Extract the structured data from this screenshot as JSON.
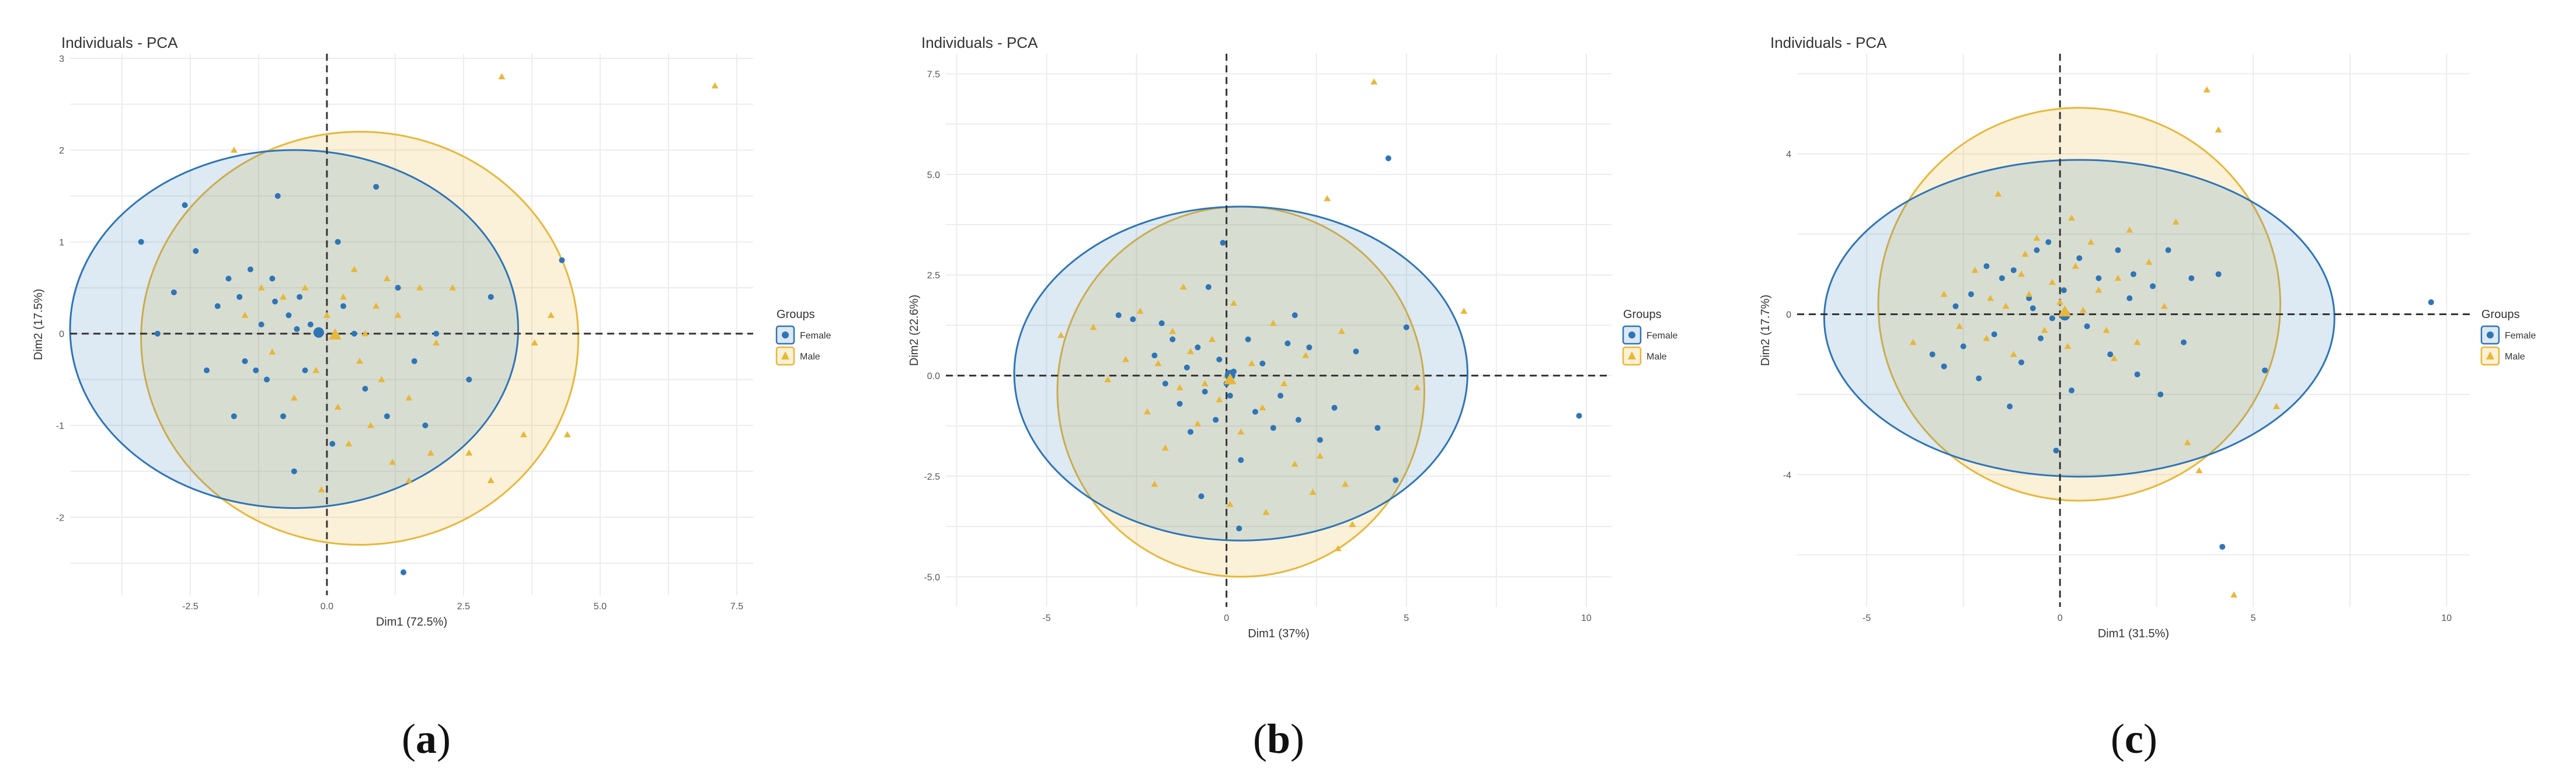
{
  "colors": {
    "female": "#2e75b6",
    "female_fill": "#dce8f4",
    "male": "#e8b73a",
    "male_fill": "#fbf1d4",
    "grid": "#ececec",
    "ref_line": "#333333"
  },
  "marker_shapes": {
    "Female": "circle",
    "Male": "triangle"
  },
  "chart_data": [
    {
      "type": "scatter",
      "title": "Individuals - PCA",
      "xlabel": "Dim1 (72.5%)",
      "ylabel": "Dim2 (17.5%)",
      "xlim": [
        -4.7,
        7.8
      ],
      "ylim": [
        -2.85,
        3.05
      ],
      "xticks": [
        -2.5,
        0.0,
        2.5,
        5.0,
        7.5
      ],
      "xtick_labels": [
        "-2.5",
        "0.0",
        "2.5",
        "5.0",
        "7.5"
      ],
      "yticks": [
        -2,
        -1,
        0,
        1,
        2,
        3
      ],
      "ytick_labels": [
        "-2",
        "-1",
        "0",
        "1",
        "2",
        "3"
      ],
      "grid": true,
      "reference_lines": {
        "x": 0,
        "y": 0,
        "style": "dashed"
      },
      "legend": {
        "title": "Groups",
        "entries": [
          "Female",
          "Male"
        ],
        "position": "right"
      },
      "ellipses": [
        {
          "series": "Female",
          "cx": -0.6,
          "cy": 0.05,
          "rx": 4.1,
          "ry": 1.95
        },
        {
          "series": "Male",
          "cx": 0.6,
          "cy": -0.05,
          "rx": 4.0,
          "ry": 2.25
        }
      ],
      "series": [
        {
          "name": "Female",
          "marker": "circle",
          "points": [
            [
              -3.4,
              1.0
            ],
            [
              -3.1,
              0.0
            ],
            [
              -2.6,
              1.4
            ],
            [
              -2.4,
              0.9
            ],
            [
              -2.2,
              -0.4
            ],
            [
              -2.0,
              0.3
            ],
            [
              -1.8,
              0.6
            ],
            [
              -1.7,
              -0.9
            ],
            [
              -1.6,
              0.4
            ],
            [
              -1.5,
              -0.3
            ],
            [
              -1.4,
              0.7
            ],
            [
              -1.3,
              -0.4
            ],
            [
              -1.2,
              0.1
            ],
            [
              -1.1,
              -0.5
            ],
            [
              -1.0,
              0.6
            ],
            [
              -0.9,
              1.5
            ],
            [
              -0.8,
              -0.9
            ],
            [
              -0.7,
              0.2
            ],
            [
              -0.6,
              -1.5
            ],
            [
              -0.5,
              0.4
            ],
            [
              -0.4,
              -0.4
            ],
            [
              -0.3,
              0.1
            ],
            [
              0.1,
              -1.2
            ],
            [
              0.3,
              0.3
            ],
            [
              0.5,
              0.0
            ],
            [
              0.7,
              -0.6
            ],
            [
              0.9,
              1.6
            ],
            [
              1.1,
              -0.9
            ],
            [
              1.3,
              0.5
            ],
            [
              1.6,
              -0.3
            ],
            [
              1.8,
              -1.0
            ],
            [
              2.0,
              0.0
            ],
            [
              1.4,
              -2.6
            ],
            [
              2.6,
              -0.5
            ],
            [
              3.0,
              0.4
            ],
            [
              4.3,
              0.8
            ],
            [
              -0.95,
              0.35
            ],
            [
              -0.55,
              0.05
            ],
            [
              -2.8,
              0.45
            ],
            [
              0.2,
              1.0
            ]
          ]
        },
        {
          "name": "Male",
          "marker": "triangle",
          "points": [
            [
              -1.7,
              2.0
            ],
            [
              -1.5,
              0.2
            ],
            [
              -1.2,
              0.5
            ],
            [
              -1.0,
              -0.2
            ],
            [
              -0.8,
              0.4
            ],
            [
              -0.6,
              -0.7
            ],
            [
              -0.4,
              0.5
            ],
            [
              -0.2,
              -0.4
            ],
            [
              0.0,
              0.2
            ],
            [
              0.2,
              -0.8
            ],
            [
              0.3,
              0.4
            ],
            [
              0.4,
              -1.2
            ],
            [
              0.5,
              0.7
            ],
            [
              0.6,
              -0.3
            ],
            [
              0.7,
              0.0
            ],
            [
              0.8,
              -1.0
            ],
            [
              0.9,
              0.3
            ],
            [
              1.0,
              -0.5
            ],
            [
              1.1,
              0.6
            ],
            [
              1.2,
              -1.4
            ],
            [
              1.3,
              0.2
            ],
            [
              1.5,
              -0.7
            ],
            [
              1.7,
              0.5
            ],
            [
              1.9,
              -1.3
            ],
            [
              2.0,
              -0.1
            ],
            [
              2.3,
              0.5
            ],
            [
              2.6,
              -1.3
            ],
            [
              3.0,
              -1.6
            ],
            [
              3.2,
              2.8
            ],
            [
              3.6,
              -1.1
            ],
            [
              3.8,
              -0.1
            ],
            [
              4.1,
              0.2
            ],
            [
              4.4,
              -1.1
            ],
            [
              7.1,
              2.7
            ],
            [
              -0.1,
              -1.7
            ],
            [
              1.5,
              -1.6
            ]
          ]
        }
      ]
    },
    {
      "type": "scatter",
      "title": "Individuals - PCA",
      "xlabel": "Dim1 (37%)",
      "ylabel": "Dim2 (22.6%)",
      "xlim": [
        -7.8,
        10.7
      ],
      "ylim": [
        -5.75,
        8.0
      ],
      "xticks": [
        -5,
        0,
        5,
        10
      ],
      "xtick_labels": [
        "-5",
        "0",
        "5",
        "10"
      ],
      "yticks": [
        -5.0,
        -2.5,
        0.0,
        2.5,
        5.0,
        7.5
      ],
      "ytick_labels": [
        "-5.0",
        "-2.5",
        "0.0",
        "2.5",
        "5.0",
        "7.5"
      ],
      "grid": true,
      "reference_lines": {
        "x": 0,
        "y": 0,
        "style": "dashed"
      },
      "legend": {
        "title": "Groups",
        "entries": [
          "Female",
          "Male"
        ],
        "position": "right"
      },
      "ellipses": [
        {
          "series": "Female",
          "cx": 0.4,
          "cy": 0.05,
          "rx": 6.3,
          "ry": 4.15
        },
        {
          "series": "Male",
          "cx": 0.4,
          "cy": -0.4,
          "rx": 5.1,
          "ry": 4.6
        }
      ],
      "series": [
        {
          "name": "Female",
          "marker": "circle",
          "points": [
            [
              -3.0,
              1.5
            ],
            [
              -2.6,
              1.4
            ],
            [
              -2.0,
              0.5
            ],
            [
              -1.7,
              -0.2
            ],
            [
              -1.5,
              0.9
            ],
            [
              -1.3,
              -0.7
            ],
            [
              -1.1,
              0.2
            ],
            [
              -1.0,
              -1.4
            ],
            [
              -0.8,
              0.7
            ],
            [
              -0.6,
              -0.4
            ],
            [
              -0.5,
              2.2
            ],
            [
              -0.3,
              -1.1
            ],
            [
              -0.2,
              0.4
            ],
            [
              -0.1,
              3.3
            ],
            [
              0.1,
              -0.5
            ],
            [
              0.2,
              0.1
            ],
            [
              0.4,
              -2.1
            ],
            [
              0.6,
              0.9
            ],
            [
              0.8,
              -0.9
            ],
            [
              1.0,
              0.3
            ],
            [
              1.3,
              -1.3
            ],
            [
              1.5,
              -0.5
            ],
            [
              1.7,
              0.8
            ],
            [
              2.0,
              -1.1
            ],
            [
              2.3,
              0.7
            ],
            [
              2.6,
              -1.6
            ],
            [
              3.0,
              -0.8
            ],
            [
              3.6,
              0.6
            ],
            [
              4.2,
              -1.3
            ],
            [
              4.7,
              -2.6
            ],
            [
              4.5,
              5.4
            ],
            [
              5.0,
              1.2
            ],
            [
              9.8,
              -1.0
            ],
            [
              -1.8,
              1.3
            ],
            [
              -0.7,
              -3.0
            ],
            [
              1.9,
              1.5
            ],
            [
              0.35,
              -3.8
            ],
            [
              0.0,
              -0.2
            ]
          ]
        },
        {
          "name": "Male",
          "marker": "triangle",
          "points": [
            [
              -4.6,
              1.0
            ],
            [
              -3.7,
              1.2
            ],
            [
              -3.3,
              -0.1
            ],
            [
              -2.8,
              0.4
            ],
            [
              -2.4,
              1.6
            ],
            [
              -2.2,
              -0.9
            ],
            [
              -1.9,
              0.3
            ],
            [
              -1.7,
              -1.8
            ],
            [
              -1.5,
              1.1
            ],
            [
              -1.3,
              -0.3
            ],
            [
              -1.0,
              0.6
            ],
            [
              -0.8,
              -1.2
            ],
            [
              -0.6,
              -0.2
            ],
            [
              -0.4,
              0.9
            ],
            [
              -0.2,
              -0.6
            ],
            [
              0.0,
              0.0
            ],
            [
              0.2,
              1.8
            ],
            [
              0.4,
              -1.4
            ],
            [
              0.7,
              0.3
            ],
            [
              1.0,
              -0.8
            ],
            [
              1.3,
              1.3
            ],
            [
              1.6,
              -0.2
            ],
            [
              1.9,
              -2.2
            ],
            [
              2.2,
              0.5
            ],
            [
              2.6,
              -2.0
            ],
            [
              2.8,
              4.4
            ],
            [
              3.2,
              1.1
            ],
            [
              3.5,
              -3.7
            ],
            [
              4.1,
              7.3
            ],
            [
              5.3,
              -0.3
            ],
            [
              6.6,
              1.6
            ],
            [
              -2.0,
              -2.7
            ],
            [
              0.1,
              -3.2
            ],
            [
              1.1,
              -3.4
            ],
            [
              3.3,
              -2.7
            ],
            [
              3.1,
              -4.3
            ],
            [
              -1.2,
              2.2
            ],
            [
              2.4,
              -2.9
            ]
          ]
        }
      ]
    },
    {
      "type": "scatter",
      "title": "Individuals - PCA",
      "xlabel": "Dim1 (31.5%)",
      "ylabel": "Dim2 (17.7%)",
      "xlim": [
        -6.8,
        10.6
      ],
      "ylim": [
        -7.3,
        6.5
      ],
      "xticks": [
        -5,
        0,
        5,
        10
      ],
      "xtick_labels": [
        "-5",
        "0",
        "5",
        "10"
      ],
      "yticks": [
        -4,
        0,
        4
      ],
      "ytick_labels": [
        "-4",
        "0",
        "4"
      ],
      "grid": true,
      "reference_lines": {
        "x": 0,
        "y": 0,
        "style": "dashed"
      },
      "legend": {
        "title": "Groups",
        "entries": [
          "Female",
          "Male"
        ],
        "position": "right"
      },
      "ellipses": [
        {
          "series": "Female",
          "cx": 0.5,
          "cy": -0.1,
          "rx": 6.6,
          "ry": 3.95
        },
        {
          "series": "Male",
          "cx": 0.5,
          "cy": 0.25,
          "rx": 5.2,
          "ry": 4.9
        }
      ],
      "series": [
        {
          "name": "Female",
          "marker": "circle",
          "points": [
            [
              -3.3,
              -1.0
            ],
            [
              -3.0,
              -1.3
            ],
            [
              -2.7,
              0.2
            ],
            [
              -2.5,
              -0.8
            ],
            [
              -2.3,
              0.5
            ],
            [
              -2.1,
              -1.6
            ],
            [
              -1.9,
              1.2
            ],
            [
              -1.7,
              -0.5
            ],
            [
              -1.5,
              0.9
            ],
            [
              -1.3,
              -2.3
            ],
            [
              -1.2,
              1.1
            ],
            [
              -1.0,
              -1.2
            ],
            [
              -0.8,
              0.4
            ],
            [
              -0.6,
              1.6
            ],
            [
              -0.5,
              -0.6
            ],
            [
              -0.3,
              1.8
            ],
            [
              -0.1,
              -3.4
            ],
            [
              0.1,
              0.6
            ],
            [
              0.3,
              -1.9
            ],
            [
              0.5,
              1.4
            ],
            [
              0.7,
              -0.3
            ],
            [
              1.0,
              0.9
            ],
            [
              1.3,
              -1.0
            ],
            [
              1.5,
              1.6
            ],
            [
              1.8,
              0.4
            ],
            [
              2.0,
              -1.5
            ],
            [
              2.4,
              0.7
            ],
            [
              2.8,
              1.6
            ],
            [
              3.2,
              -0.7
            ],
            [
              3.4,
              0.9
            ],
            [
              4.1,
              1.0
            ],
            [
              4.2,
              -5.8
            ],
            [
              5.3,
              -1.4
            ],
            [
              9.6,
              0.3
            ],
            [
              2.6,
              -2.0
            ],
            [
              -0.7,
              0.15
            ],
            [
              -0.2,
              -0.1
            ],
            [
              1.9,
              1.0
            ]
          ]
        },
        {
          "name": "Male",
          "marker": "triangle",
          "points": [
            [
              -3.8,
              -0.7
            ],
            [
              -3.0,
              0.5
            ],
            [
              -2.6,
              -0.3
            ],
            [
              -2.2,
              1.1
            ],
            [
              -1.9,
              -0.6
            ],
            [
              -1.6,
              3.0
            ],
            [
              -1.4,
              0.2
            ],
            [
              -1.2,
              -1.0
            ],
            [
              -1.0,
              1.0
            ],
            [
              -0.8,
              0.5
            ],
            [
              -0.6,
              1.9
            ],
            [
              -0.4,
              -0.4
            ],
            [
              -0.2,
              0.8
            ],
            [
              0.0,
              0.3
            ],
            [
              0.2,
              -0.8
            ],
            [
              0.4,
              1.2
            ],
            [
              0.6,
              0.1
            ],
            [
              0.8,
              1.8
            ],
            [
              1.0,
              0.6
            ],
            [
              1.2,
              -0.4
            ],
            [
              1.5,
              0.9
            ],
            [
              1.8,
              2.1
            ],
            [
              2.0,
              -0.7
            ],
            [
              2.3,
              1.3
            ],
            [
              2.7,
              0.2
            ],
            [
              3.0,
              2.3
            ],
            [
              3.3,
              -3.2
            ],
            [
              3.6,
              -3.9
            ],
            [
              3.8,
              5.6
            ],
            [
              4.1,
              4.6
            ],
            [
              4.5,
              -7.0
            ],
            [
              5.6,
              -2.3
            ],
            [
              -0.9,
              1.5
            ],
            [
              1.4,
              -1.1
            ],
            [
              -1.8,
              0.4
            ],
            [
              0.3,
              2.4
            ]
          ]
        }
      ]
    }
  ],
  "captions": [
    {
      "open": "(",
      "letter": "a",
      "close": ")"
    },
    {
      "open": "(",
      "letter": "b",
      "close": ")"
    },
    {
      "open": "(",
      "letter": "c",
      "close": ")"
    }
  ]
}
